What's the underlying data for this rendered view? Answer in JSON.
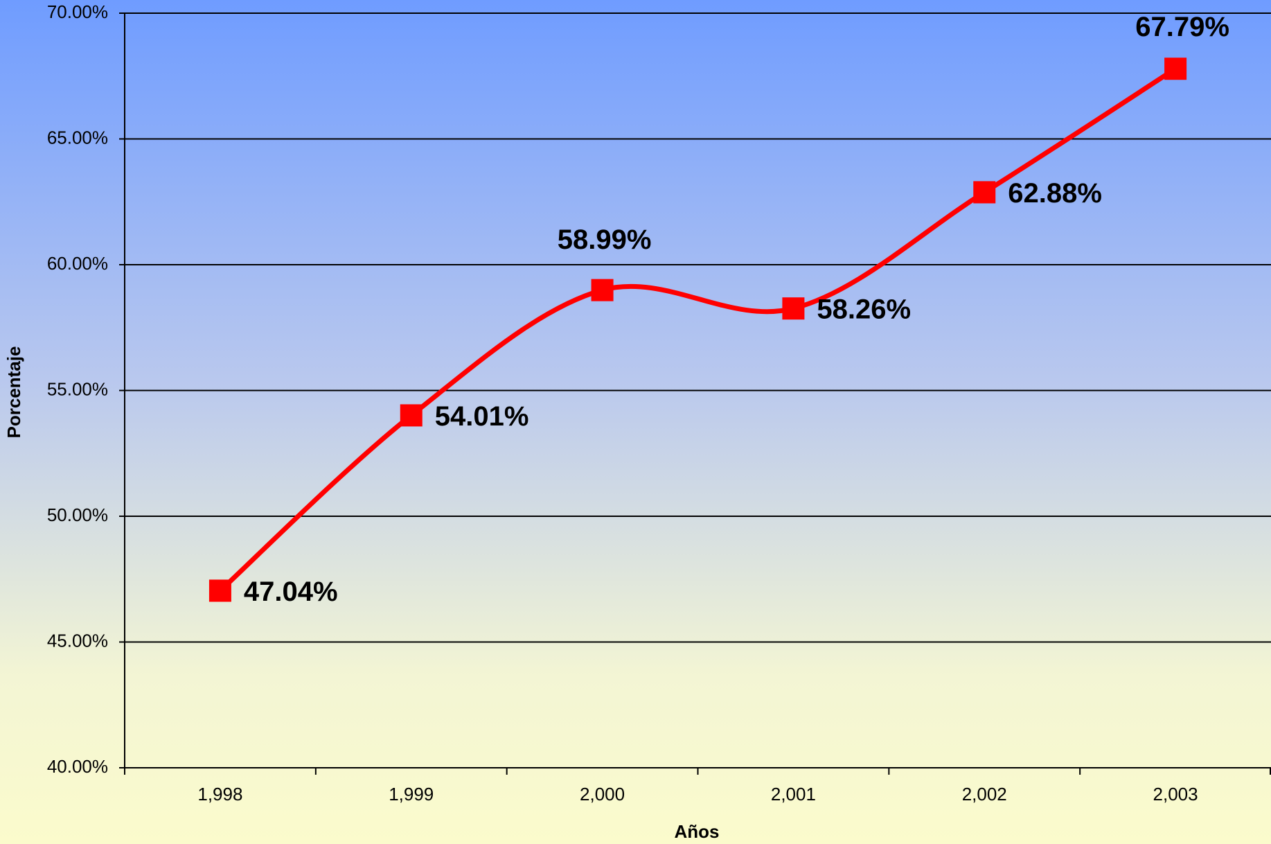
{
  "chart_data": {
    "type": "line",
    "x_label": "Años",
    "y_label": "Porcentaje",
    "categories": [
      "1,998",
      "1,999",
      "2,000",
      "2,001",
      "2,002",
      "2,003"
    ],
    "series": [
      {
        "color": "#ff0000",
        "values": [
          47.04,
          54.01,
          58.99,
          58.26,
          62.88,
          67.79
        ],
        "value_labels": [
          "47.04%",
          "54.01%",
          "58.99%",
          "58.26%",
          "62.88%",
          "67.79%"
        ]
      }
    ],
    "ylim": [
      40,
      70
    ],
    "yticks": [
      {
        "value": 40,
        "label": "40.00%"
      },
      {
        "value": 45,
        "label": "45.00%"
      },
      {
        "value": 50,
        "label": "50.00%"
      },
      {
        "value": 55,
        "label": "55.00%"
      },
      {
        "value": 60,
        "label": "60.00%"
      },
      {
        "value": 65,
        "label": "65.00%"
      },
      {
        "value": 70,
        "label": "70.00%"
      }
    ],
    "grid": true,
    "smooth": true
  }
}
